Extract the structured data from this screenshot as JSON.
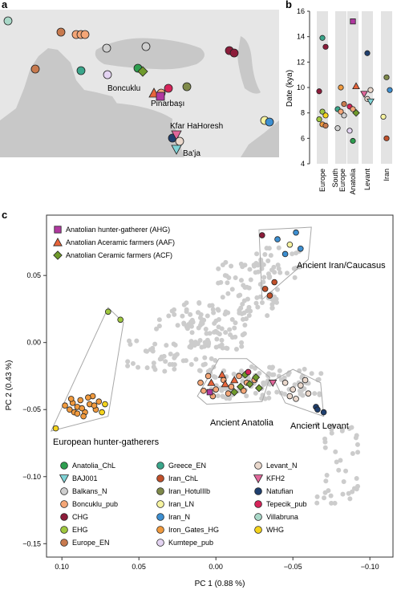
{
  "panels": {
    "a": {
      "label": "a",
      "places": [
        "Boncuklu",
        "Pinarbaşı",
        "Kfar HaHoresh",
        "Ba'ja"
      ]
    },
    "b": {
      "label": "b",
      "ylabel": "Date (kya)",
      "yticks": [
        "4",
        "6",
        "8",
        "10",
        "12",
        "14",
        "16"
      ],
      "regions": [
        "Europe",
        "South Europe",
        "Anatolia",
        "Levant",
        "Iran"
      ]
    },
    "c": {
      "label": "c",
      "xlabel": "PC 1 (0.88 %)",
      "ylabel": "PC 2 (0.43 %)",
      "xticks": [
        "0.10",
        "0.05",
        "0.00",
        "−0.05",
        "−0.10"
      ],
      "yticks": [
        "0.05",
        "0.00",
        "−0.05",
        "−0.10",
        "−0.15"
      ],
      "key": [
        {
          "label": "Anatolian hunter-gatherer (AHG)",
          "shape": "square",
          "color": "#b0389f"
        },
        {
          "label": "Anatolian Aceramic farmers (AAF)",
          "shape": "triangle",
          "color": "#e8643a"
        },
        {
          "label": "Anatolian Ceramic farmers (ACF)",
          "shape": "diamond",
          "color": "#6f9a2c"
        }
      ],
      "group_labels": [
        "Ancient Iran/Caucasus",
        "Ancient Anatolia",
        "Ancient Levant",
        "European hunter-gatherers"
      ],
      "legend": [
        {
          "label": "Anatolia_ChL",
          "color": "#2e9e4f",
          "shape": "circle"
        },
        {
          "label": "BAJ001",
          "color": "#7fd3d6",
          "shape": "tri-down"
        },
        {
          "label": "Balkans_N",
          "color": "#cfcfcf",
          "shape": "circle"
        },
        {
          "label": "Boncuklu_pub",
          "color": "#f4a677",
          "shape": "circle"
        },
        {
          "label": "CHG",
          "color": "#8c1c3a",
          "shape": "circle"
        },
        {
          "label": "EHG",
          "color": "#9fc73f",
          "shape": "circle"
        },
        {
          "label": "Europe_EN",
          "color": "#c87a4e",
          "shape": "circle"
        },
        {
          "label": "Greece_EN",
          "color": "#3aa68b",
          "shape": "circle"
        },
        {
          "label": "Iran_ChL",
          "color": "#c1502a",
          "shape": "circle"
        },
        {
          "label": "Iran_HotuIIIb",
          "color": "#7f8a4a",
          "shape": "circle"
        },
        {
          "label": "Iran_LN",
          "color": "#f6f3a0",
          "shape": "circle"
        },
        {
          "label": "Iran_N",
          "color": "#3d8fd1",
          "shape": "circle"
        },
        {
          "label": "Iron_Gates_HG",
          "color": "#f09a3e",
          "shape": "circle"
        },
        {
          "label": "Kumtepe_pub",
          "color": "#e4d4f2",
          "shape": "circle"
        },
        {
          "label": "Levant_N",
          "color": "#ead8cc",
          "shape": "circle"
        },
        {
          "label": "KFH2",
          "color": "#e0679a",
          "shape": "tri-down"
        },
        {
          "label": "Natufian",
          "color": "#1f3f6e",
          "shape": "circle"
        },
        {
          "label": "Tepecik_pub",
          "color": "#d6245a",
          "shape": "circle"
        },
        {
          "label": "Villabruna",
          "color": "#a9d8c8",
          "shape": "circle"
        },
        {
          "label": "WHG",
          "color": "#f4d31c",
          "shape": "circle"
        }
      ]
    }
  },
  "chart_data": [
    {
      "type": "scatter",
      "panel": "b",
      "ylabel": "Date (kya)",
      "ylim": [
        4,
        16
      ],
      "categories": [
        "Europe",
        "South Europe",
        "Anatolia",
        "Levant",
        "Iran"
      ],
      "points": [
        {
          "cat": "Europe",
          "y": 13.9,
          "color": "#3aa68b",
          "shape": "circle"
        },
        {
          "cat": "Europe",
          "y": 13.2,
          "color": "#8c1c3a",
          "shape": "circle"
        },
        {
          "cat": "Europe",
          "y": 9.7,
          "color": "#8c1c3a",
          "shape": "circle"
        },
        {
          "cat": "Europe",
          "y": 8.1,
          "color": "#9fc73f",
          "shape": "circle"
        },
        {
          "cat": "Europe",
          "y": 7.8,
          "color": "#f4d31c",
          "shape": "circle"
        },
        {
          "cat": "Europe",
          "y": 7.5,
          "color": "#9fc73f",
          "shape": "circle"
        },
        {
          "cat": "Europe",
          "y": 7.1,
          "color": "#f09a3e",
          "shape": "circle"
        },
        {
          "cat": "Europe",
          "y": 7.0,
          "color": "#c87a4e",
          "shape": "circle"
        },
        {
          "cat": "South Europe",
          "y": 10.0,
          "color": "#f09a3e",
          "shape": "circle"
        },
        {
          "cat": "South Europe",
          "y": 8.7,
          "color": "#c87a4e",
          "shape": "circle"
        },
        {
          "cat": "South Europe",
          "y": 8.3,
          "color": "#3aa68b",
          "shape": "circle"
        },
        {
          "cat": "South Europe",
          "y": 8.1,
          "color": "#f4a677",
          "shape": "circle"
        },
        {
          "cat": "South Europe",
          "y": 7.8,
          "color": "#cfcfcf",
          "shape": "circle"
        },
        {
          "cat": "South Europe",
          "y": 6.8,
          "color": "#cfcfcf",
          "shape": "circle"
        },
        {
          "cat": "Anatolia",
          "y": 15.2,
          "color": "#b0389f",
          "shape": "square"
        },
        {
          "cat": "Anatolia",
          "y": 10.1,
          "color": "#e8643a",
          "shape": "triangle"
        },
        {
          "cat": "Anatolia",
          "y": 8.5,
          "color": "#d6245a",
          "shape": "circle"
        },
        {
          "cat": "Anatolia",
          "y": 8.3,
          "color": "#f4a677",
          "shape": "circle"
        },
        {
          "cat": "Anatolia",
          "y": 8.0,
          "color": "#6f9a2c",
          "shape": "diamond"
        },
        {
          "cat": "Anatolia",
          "y": 6.6,
          "color": "#e4d4f2",
          "shape": "circle"
        },
        {
          "cat": "Anatolia",
          "y": 5.8,
          "color": "#2e9e4f",
          "shape": "circle"
        },
        {
          "cat": "Levant",
          "y": 12.7,
          "color": "#1f3f6e",
          "shape": "circle"
        },
        {
          "cat": "Levant",
          "y": 9.8,
          "color": "#ead8cc",
          "shape": "circle"
        },
        {
          "cat": "Levant",
          "y": 9.5,
          "color": "#e0679a",
          "shape": "tri-down"
        },
        {
          "cat": "Levant",
          "y": 9.1,
          "color": "#ead8cc",
          "shape": "circle"
        },
        {
          "cat": "Levant",
          "y": 8.9,
          "color": "#7fd3d6",
          "shape": "tri-down"
        },
        {
          "cat": "Iran",
          "y": 10.8,
          "color": "#7f8a4a",
          "shape": "circle"
        },
        {
          "cat": "Iran",
          "y": 9.8,
          "color": "#3d8fd1",
          "shape": "circle"
        },
        {
          "cat": "Iran",
          "y": 7.7,
          "color": "#f6f3a0",
          "shape": "circle"
        },
        {
          "cat": "Iran",
          "y": 6.0,
          "color": "#c1502a",
          "shape": "circle"
        }
      ]
    },
    {
      "type": "scatter",
      "panel": "c",
      "xlabel": "PC 1 (0.88 %)",
      "ylabel": "PC 2 (0.43 %)",
      "xlim": [
        0.11,
        -0.115
      ],
      "ylim": [
        -0.16,
        0.095
      ],
      "series": [
        {
          "name": "European hunter-gatherers",
          "color": "#f09a3e",
          "points": [
            [
              0.098,
              -0.047
            ],
            [
              0.095,
              -0.05
            ],
            [
              0.093,
              -0.045
            ],
            [
              0.09,
              -0.048
            ],
            [
              0.088,
              -0.043
            ],
            [
              0.085,
              -0.052
            ],
            [
              0.082,
              -0.046
            ],
            [
              0.08,
              -0.04
            ],
            [
              0.078,
              -0.05
            ],
            [
              0.076,
              -0.044
            ],
            [
              0.092,
              -0.052
            ],
            [
              0.087,
              -0.049
            ],
            [
              0.083,
              -0.041
            ],
            [
              0.079,
              -0.047
            ],
            [
              0.094,
              -0.042
            ],
            [
              0.086,
              -0.055
            ],
            [
              0.09,
              -0.053
            ]
          ]
        },
        {
          "name": "WHG",
          "color": "#f4d31c",
          "points": [
            [
              0.104,
              -0.064
            ],
            [
              0.072,
              -0.046
            ],
            [
              0.074,
              -0.052
            ]
          ]
        },
        {
          "name": "EHG",
          "color": "#9fc73f",
          "points": [
            [
              0.07,
              0.023
            ],
            [
              0.062,
              0.017
            ]
          ]
        },
        {
          "name": "Iran_N",
          "color": "#3d8fd1",
          "points": [
            [
              -0.052,
              0.082
            ],
            [
              -0.04,
              0.077
            ],
            [
              -0.045,
              0.066
            ],
            [
              -0.055,
              0.07
            ]
          ]
        },
        {
          "name": "CHG",
          "color": "#8c1c3a",
          "points": [
            [
              -0.03,
              0.08
            ]
          ]
        },
        {
          "name": "Iran_ChL",
          "color": "#c1502a",
          "points": [
            [
              -0.032,
              0.04
            ],
            [
              -0.035,
              0.035
            ],
            [
              -0.038,
              0.045
            ]
          ]
        },
        {
          "name": "Iran_LN",
          "color": "#f6f3a0",
          "points": [
            [
              -0.048,
              0.073
            ]
          ]
        },
        {
          "name": "Anatolia",
          "color": "#f4a677",
          "points": [
            [
              0.01,
              -0.03
            ],
            [
              0.005,
              -0.025
            ],
            [
              0.0,
              -0.035
            ],
            [
              -0.005,
              -0.028
            ],
            [
              -0.01,
              -0.033
            ],
            [
              -0.015,
              -0.025
            ],
            [
              -0.02,
              -0.03
            ],
            [
              0.002,
              -0.04
            ],
            [
              -0.008,
              -0.038
            ],
            [
              -0.018,
              -0.036
            ],
            [
              -0.025,
              -0.028
            ],
            [
              0.008,
              -0.036
            ]
          ]
        },
        {
          "name": "AAF",
          "color": "#e8643a",
          "points": [
            [
              0.003,
              -0.03
            ],
            [
              -0.006,
              -0.031
            ],
            [
              -0.012,
              -0.028
            ],
            [
              -0.004,
              -0.024
            ]
          ]
        },
        {
          "name": "ACF",
          "color": "#6f9a2c",
          "points": [
            [
              -0.016,
              -0.033
            ],
            [
              -0.022,
              -0.031
            ],
            [
              -0.026,
              -0.026
            ],
            [
              -0.019,
              -0.024
            ],
            [
              -0.028,
              -0.034
            ],
            [
              -0.012,
              -0.037
            ]
          ]
        },
        {
          "name": "AHG",
          "color": "#b0389f",
          "points": [
            [
              0.004,
              -0.037
            ]
          ]
        },
        {
          "name": "Tepecik_pub",
          "color": "#d6245a",
          "points": [
            [
              -0.021,
              -0.022
            ]
          ]
        },
        {
          "name": "Levant",
          "color": "#ead8cc",
          "points": [
            [
              -0.045,
              -0.03
            ],
            [
              -0.05,
              -0.035
            ],
            [
              -0.055,
              -0.032
            ],
            [
              -0.06,
              -0.038
            ],
            [
              -0.048,
              -0.04
            ],
            [
              -0.058,
              -0.028
            ],
            [
              -0.052,
              -0.042
            ]
          ]
        },
        {
          "name": "Natufian",
          "color": "#1f3f6e",
          "points": [
            [
              -0.065,
              -0.048
            ],
            [
              -0.07,
              -0.052
            ],
            [
              -0.066,
              -0.05
            ]
          ]
        },
        {
          "name": "KFH2",
          "color": "#e0679a",
          "points": [
            [
              -0.037,
              -0.03
            ]
          ]
        }
      ]
    }
  ]
}
